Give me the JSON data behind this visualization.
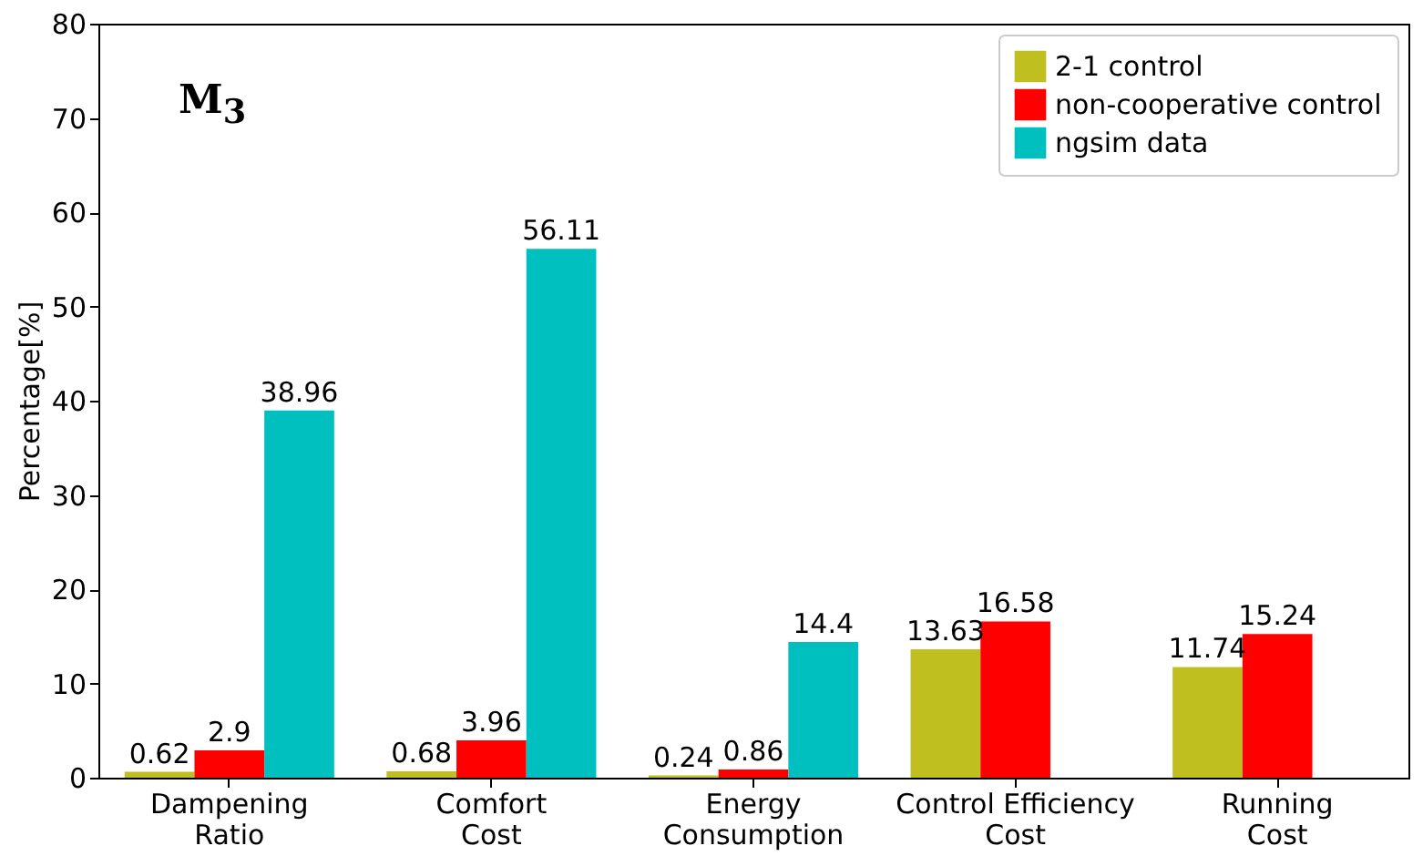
{
  "chart_data": {
    "type": "bar",
    "ylabel": "Percentage[%]",
    "annotations": [
      "M$_{3}$"
    ],
    "categories": [
      "Dampening\nRatio",
      "Comfort\nCost",
      "Energy\nConsumption",
      "Control Efficiency\nCost",
      "Running\nCost"
    ],
    "series": [
      {
        "name": "2-1 control",
        "color": "#bfbf1f",
        "values": [
          0.62,
          0.68,
          0.24,
          13.63,
          11.74
        ]
      },
      {
        "name": "non-cooperative control",
        "color": "#ff0000",
        "values": [
          2.9,
          3.96,
          0.86,
          16.58,
          15.24
        ]
      },
      {
        "name": "ngsim data",
        "color": "#00bfbf",
        "values": [
          38.96,
          56.11,
          14.4,
          null,
          null
        ]
      }
    ],
    "ylim": [
      0,
      80
    ],
    "yticks": [
      0,
      10,
      20,
      30,
      40,
      50,
      60,
      70,
      80
    ],
    "grid": false,
    "legend": "top right",
    "data_labels": true
  }
}
